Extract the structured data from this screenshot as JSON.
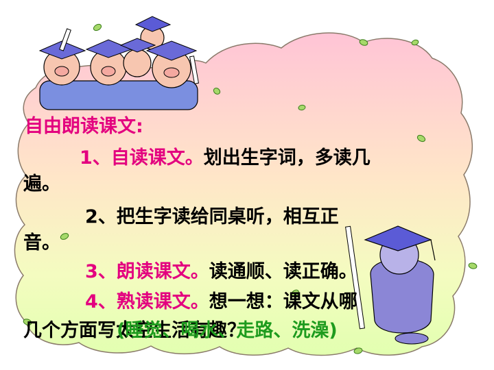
{
  "title": "自由朗读课文:",
  "items": [
    {
      "number": "1、",
      "highlight": "自读课文。",
      "rest": "划出生字词，多读几",
      "wrap": "遍。"
    },
    {
      "number": "2、",
      "rest": "把生字读给同桌听，相互正",
      "wrap": "音。"
    },
    {
      "number": "3、",
      "highlight": "朗读课文。",
      "rest": "读通顺、读正确。"
    },
    {
      "number": "4、",
      "highlight": "熟读课文。",
      "rest": "想一想：课文从哪",
      "wrap": "几个方面写太空生活有趣？"
    }
  ],
  "answers": "(睡觉、喝水、走路、洗澡)",
  "colors": {
    "highlight": "#e3007f",
    "answer": "#1e9b1e",
    "cloud_top": "#ffc8d8",
    "cloud_bottom": "#e6ffb4"
  },
  "icons": [
    "graduate-pigs-illustration",
    "graduate-pig-with-diploma",
    "leaf-icon"
  ]
}
